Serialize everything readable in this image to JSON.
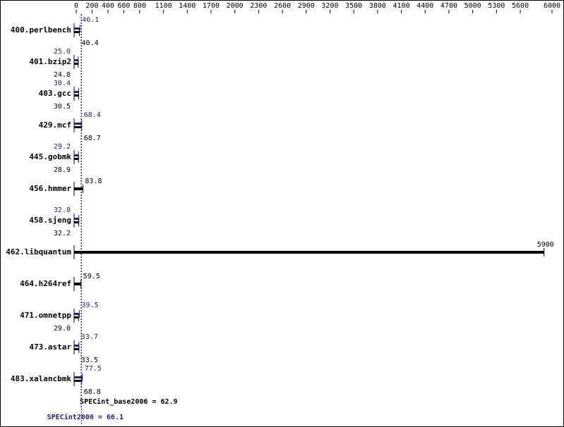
{
  "chart_data": {
    "type": "spec-bar",
    "categories": [
      "400.perlbench",
      "401.bzip2",
      "403.gcc",
      "429.mcf",
      "445.gobmk",
      "456.hmmer",
      "458.sjeng",
      "462.libquantum",
      "464.h264ref",
      "471.omnetpp",
      "473.astar",
      "483.xalancbmk"
    ],
    "series": [
      {
        "color": "#1f1f8f",
        "values": [
          46.1,
          25.0,
          30.4,
          68.4,
          29.2,
          null,
          32.8,
          null,
          null,
          39.5,
          33.7,
          77.5
        ],
        "value_labels": [
          "46.1",
          "25.0",
          "30.4",
          "68.4",
          "29.2",
          null,
          "32.8",
          null,
          null,
          "39.5",
          "33.7",
          "77.5"
        ]
      },
      {
        "color": "#000000",
        "values": [
          40.4,
          24.8,
          30.5,
          68.7,
          28.9,
          83.8,
          32.2,
          5900,
          59.5,
          29.0,
          33.5,
          68.8
        ],
        "value_labels": [
          "40.4",
          "24.8",
          "30.5",
          "68.7",
          "28.9",
          "83.8",
          "32.2",
          "5900",
          "59.5",
          "29.0",
          "33.5",
          "68.8"
        ]
      }
    ],
    "xlim": [
      0,
      6000
    ],
    "xticks": [
      0,
      200,
      400,
      600,
      800,
      1100,
      1400,
      1700,
      2000,
      2300,
      2600,
      2900,
      3200,
      3500,
      3800,
      4100,
      4400,
      4700,
      5000,
      5300,
      5600,
      6000
    ],
    "summary": [
      {
        "value": 62.9,
        "label": "SPECint_base2006 = 62.9",
        "color": "#000000"
      },
      {
        "value": 66.1,
        "label": "SPECint2006 = 66.1",
        "color": "#1f1f8f"
      }
    ]
  }
}
